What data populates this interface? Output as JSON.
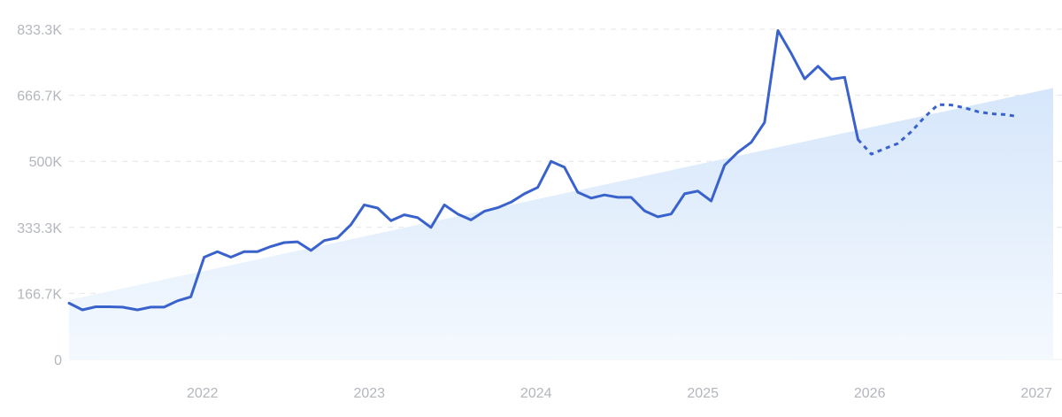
{
  "chart_data": {
    "type": "line",
    "title": "",
    "xlabel": "",
    "ylabel": "",
    "colors": {
      "line": "#3a62cc",
      "trend_fill_top": "#d6e6fb",
      "trend_fill_bottom": "#f4f9fe",
      "grid": "#e4e6ea",
      "tick_text": "#b3b6bd"
    },
    "grid": true,
    "ylim": [
      0,
      833.3
    ],
    "y_ticks": [
      {
        "value": 0,
        "label": "0"
      },
      {
        "value": 166.7,
        "label": "166.7K"
      },
      {
        "value": 333.3,
        "label": "333.3K"
      },
      {
        "value": 500,
        "label": "500K"
      },
      {
        "value": 666.7,
        "label": "666.7K"
      },
      {
        "value": 833.3,
        "label": "833.3K"
      }
    ],
    "xlim": [
      2021.2,
      2027.1
    ],
    "x_ticks": [
      {
        "value": 2022,
        "label": "2022"
      },
      {
        "value": 2023,
        "label": "2023"
      },
      {
        "value": 2024,
        "label": "2024"
      },
      {
        "value": 2025,
        "label": "2025"
      },
      {
        "value": 2026,
        "label": "2026"
      },
      {
        "value": 2027,
        "label": "2027"
      }
    ],
    "trend": {
      "start": [
        2021.2,
        150
      ],
      "end": [
        2027.1,
        685
      ]
    },
    "series": [
      {
        "style": "solid",
        "points": [
          [
            2021.2,
            142
          ],
          [
            2021.28,
            125
          ],
          [
            2021.36,
            133
          ],
          [
            2021.44,
            133
          ],
          [
            2021.52,
            132
          ],
          [
            2021.61,
            125
          ],
          [
            2021.69,
            132
          ],
          [
            2021.77,
            132
          ],
          [
            2021.85,
            148
          ],
          [
            2021.93,
            158
          ],
          [
            2022.01,
            258
          ],
          [
            2022.09,
            272
          ],
          [
            2022.17,
            258
          ],
          [
            2022.25,
            272
          ],
          [
            2022.33,
            272
          ],
          [
            2022.41,
            285
          ],
          [
            2022.49,
            295
          ],
          [
            2022.57,
            297
          ],
          [
            2022.65,
            275
          ],
          [
            2022.73,
            300
          ],
          [
            2022.81,
            307
          ],
          [
            2022.89,
            340
          ],
          [
            2022.97,
            390
          ],
          [
            2023.05,
            382
          ],
          [
            2023.13,
            350
          ],
          [
            2023.21,
            365
          ],
          [
            2023.29,
            358
          ],
          [
            2023.37,
            333
          ],
          [
            2023.45,
            390
          ],
          [
            2023.53,
            367
          ],
          [
            2023.61,
            352
          ],
          [
            2023.69,
            374
          ],
          [
            2023.77,
            383
          ],
          [
            2023.85,
            397
          ],
          [
            2023.93,
            418
          ],
          [
            2024.01,
            434
          ],
          [
            2024.09,
            500
          ],
          [
            2024.17,
            485
          ],
          [
            2024.25,
            422
          ],
          [
            2024.33,
            407
          ],
          [
            2024.41,
            415
          ],
          [
            2024.49,
            409
          ],
          [
            2024.57,
            409
          ],
          [
            2024.65,
            375
          ],
          [
            2024.73,
            360
          ],
          [
            2024.81,
            367
          ],
          [
            2024.89,
            418
          ],
          [
            2024.97,
            425
          ],
          [
            2025.05,
            400
          ],
          [
            2025.13,
            490
          ],
          [
            2025.21,
            523
          ],
          [
            2025.29,
            548
          ],
          [
            2025.37,
            598
          ],
          [
            2025.45,
            830
          ],
          [
            2025.53,
            772
          ],
          [
            2025.61,
            708
          ],
          [
            2025.69,
            740
          ],
          [
            2025.77,
            707
          ],
          [
            2025.85,
            712
          ],
          [
            2025.93,
            555
          ]
        ]
      },
      {
        "style": "dashed",
        "points": [
          [
            2025.93,
            555
          ],
          [
            2026.01,
            518
          ],
          [
            2026.09,
            532
          ],
          [
            2026.17,
            545
          ],
          [
            2026.25,
            575
          ],
          [
            2026.33,
            612
          ],
          [
            2026.41,
            643
          ],
          [
            2026.49,
            642
          ],
          [
            2026.57,
            635
          ],
          [
            2026.65,
            625
          ],
          [
            2026.73,
            620
          ],
          [
            2026.81,
            618
          ],
          [
            2026.89,
            613
          ]
        ]
      }
    ]
  }
}
